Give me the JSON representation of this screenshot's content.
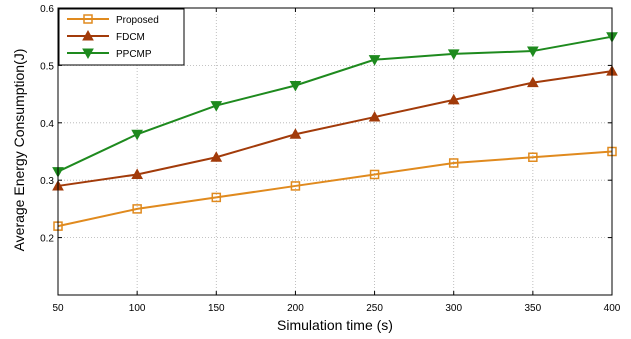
{
  "chart_data": {
    "type": "line",
    "title": "",
    "xlabel": "Simulation time (s)",
    "ylabel": "Average Energy Consumption(J)",
    "x": [
      50,
      100,
      150,
      200,
      250,
      300,
      350,
      400
    ],
    "xlim": [
      50,
      400
    ],
    "ylim": [
      0.1,
      0.6
    ],
    "xticks": [
      "50",
      "100",
      "150",
      "200",
      "250",
      "300",
      "350",
      "400"
    ],
    "yticks": [
      "0.2",
      "0.3",
      "0.4",
      "0.5",
      "0.6"
    ],
    "grid": true,
    "legend_position": "top-left",
    "series": [
      {
        "name": "Proposed",
        "color": "#e08a1e",
        "marker": "square",
        "values": [
          0.22,
          0.25,
          0.27,
          0.29,
          0.31,
          0.33,
          0.34,
          0.35
        ]
      },
      {
        "name": "FDCM",
        "color": "#a23b0a",
        "marker": "triangle-up",
        "values": [
          0.29,
          0.31,
          0.34,
          0.38,
          0.41,
          0.44,
          0.47,
          0.49
        ]
      },
      {
        "name": "PPCMP",
        "color": "#1e8a1e",
        "marker": "triangle-down",
        "values": [
          0.315,
          0.38,
          0.43,
          0.465,
          0.51,
          0.52,
          0.525,
          0.55
        ]
      }
    ]
  }
}
